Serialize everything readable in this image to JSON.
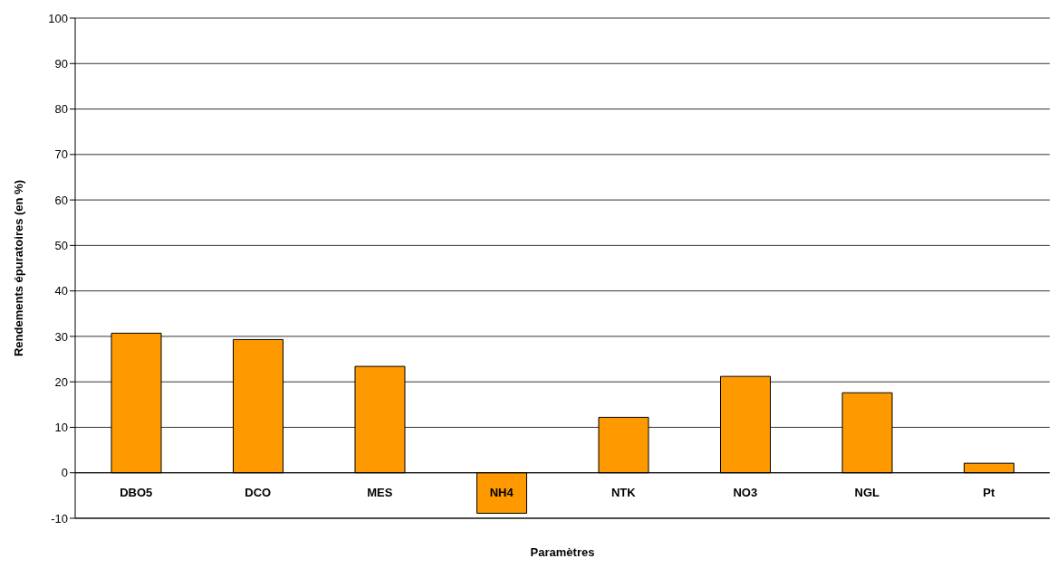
{
  "chart_data": {
    "type": "bar",
    "xlabel": "Paramètres",
    "ylabel": "Rendements épuratoires (en %)",
    "categories": [
      "DBO5",
      "DCO",
      "MES",
      "NH4",
      "NTK",
      "NO3",
      "NGL",
      "Pt"
    ],
    "values": [
      30.7,
      29.3,
      23.4,
      -8.9,
      12.2,
      21.2,
      17.6,
      2.1
    ],
    "color": "#ff9900",
    "ylim": [
      -10,
      100
    ],
    "yticks": [
      -10,
      0,
      10,
      20,
      30,
      40,
      50,
      60,
      70,
      80,
      90,
      100
    ],
    "grid": "y"
  }
}
